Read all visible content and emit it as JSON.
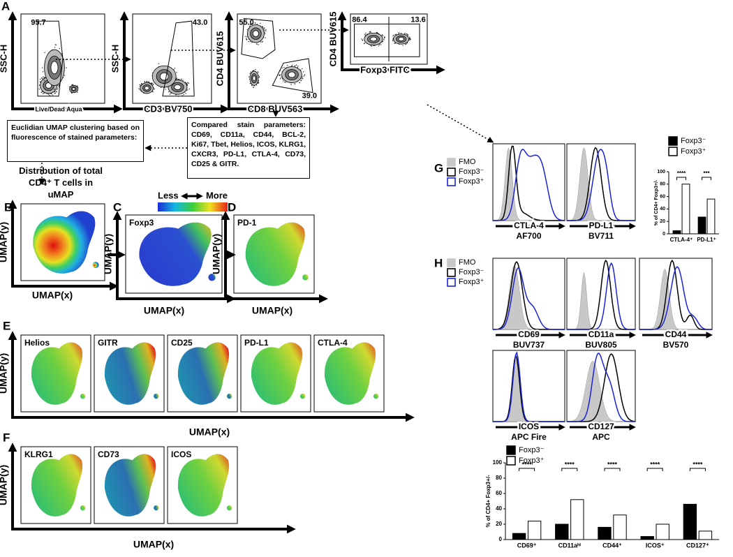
{
  "panel_letters": [
    "A",
    "B",
    "C",
    "D",
    "E",
    "F",
    "G",
    "H"
  ],
  "flow": {
    "plots": [
      {
        "y_label": "SSC-H",
        "x_label": "Live/Dead Aqua",
        "gates": [
          "95.7"
        ]
      },
      {
        "y_label": "SSC-H",
        "x_label": "CD3 BV750",
        "gates": [
          "43.0"
        ]
      },
      {
        "y_label": "CD4 BUV615",
        "x_label": "CD8 BUV563",
        "gates": [
          "55.0",
          "39.0"
        ]
      },
      {
        "y_label": "CD4 BUV615",
        "x_label": "Foxp3 FITC",
        "gates": [
          "86.4",
          "13.6"
        ]
      }
    ]
  },
  "umap_box": "Euclidian UMAP clustering based on fluorescence of stained parameters:",
  "stain_box": "Compared stain parameters: CD69, CD11a, CD44, BCL-2, Ki67, Tbet, Helios, ICOS, KLRG1, CXCR3, PD-L1, CTLA-4, CD73, CD25 & GITR.",
  "distribution": "Distribution of total CD4⁺ T cells in uMAP",
  "colorbar": {
    "low": "Less",
    "high": "More"
  },
  "umap": {
    "y_label": "UMAP(y)",
    "x_label": "UMAP(x)",
    "row_bcd": [
      "Foxp3",
      "PD-1"
    ],
    "row_e": [
      "Helios",
      "GITR",
      "CD25",
      "PD-L1",
      "CTLA-4"
    ],
    "row_f": [
      "KLRG1",
      "CD73",
      "ICOS"
    ]
  },
  "histograms": {
    "legend": [
      "FMO",
      "Foxp3⁻",
      "Foxp3⁺"
    ],
    "g": [
      {
        "marker": "CTLA-4",
        "fluor": "AF700"
      },
      {
        "marker": "PD-L1",
        "fluor": "BV711"
      }
    ],
    "h": [
      {
        "marker": "CD69",
        "fluor": "BUV737"
      },
      {
        "marker": "CD11a",
        "fluor": "BUV805"
      },
      {
        "marker": "CD44",
        "fluor": "BV570"
      },
      {
        "marker": "ICOS",
        "fluor": "APC Fire"
      },
      {
        "marker": "CD127",
        "fluor": "APC"
      }
    ]
  },
  "chart_data": [
    {
      "type": "bar",
      "y_label": "% of CD4+ Foxp3+/-",
      "categories": [
        "CTLA-4⁺",
        "PD-L1⁺"
      ],
      "series": [
        {
          "name": "Foxp3⁻",
          "color": "#000000",
          "values": [
            5,
            27
          ]
        },
        {
          "name": "Foxp3⁺",
          "color": "#ffffff",
          "values": [
            80,
            56
          ]
        }
      ],
      "significance": [
        "****",
        "***"
      ],
      "ylim": [
        0,
        100
      ],
      "yticks": [
        0,
        20,
        40,
        60,
        80,
        100
      ]
    },
    {
      "type": "bar",
      "y_label": "% of CD4+ Foxp3+/-",
      "categories": [
        "CD69⁺",
        "CD11aʰⁱ",
        "CD44⁺",
        "ICOS⁺",
        "CD127⁺"
      ],
      "series": [
        {
          "name": "Foxp3⁻",
          "color": "#000000",
          "values": [
            8,
            20,
            16,
            4,
            46
          ]
        },
        {
          "name": "Foxp3⁺",
          "color": "#ffffff",
          "values": [
            24,
            52,
            32,
            20,
            11
          ]
        }
      ],
      "significance": [
        "****",
        "****",
        "****",
        "****",
        "****"
      ],
      "ylim": [
        0,
        100
      ],
      "yticks": [
        0,
        20,
        40,
        60,
        80,
        100
      ]
    }
  ]
}
